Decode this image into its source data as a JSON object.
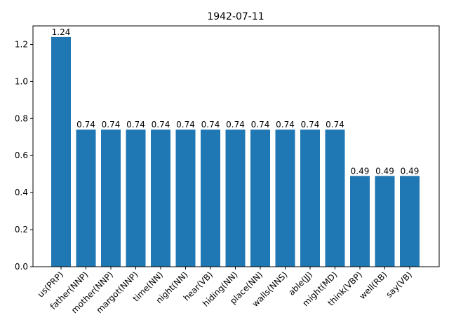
{
  "chart_data": {
    "type": "bar",
    "title": "1942-07-11",
    "xlabel": "",
    "ylabel": "",
    "categories": [
      "us(PRP)",
      "father(NNP)",
      "mother(NNP)",
      "margot(NNP)",
      "time(NN)",
      "night(NN)",
      "hear(VB)",
      "hiding(NN)",
      "place(NN)",
      "walls(NNS)",
      "able(JJ)",
      "might(MD)",
      "think(VBP)",
      "well(RB)",
      "say(VB)"
    ],
    "values": [
      1.24,
      0.74,
      0.74,
      0.74,
      0.74,
      0.74,
      0.74,
      0.74,
      0.74,
      0.74,
      0.74,
      0.74,
      0.49,
      0.49,
      0.49
    ],
    "value_labels": [
      "1.24",
      "0.74",
      "0.74",
      "0.74",
      "0.74",
      "0.74",
      "0.74",
      "0.74",
      "0.74",
      "0.74",
      "0.74",
      "0.74",
      "0.49",
      "0.49",
      "0.49"
    ],
    "ylim": [
      0,
      1.3
    ],
    "yticks": [
      0.0,
      0.2,
      0.4,
      0.6,
      0.8,
      1.0,
      1.2
    ],
    "ytick_labels": [
      "0.0",
      "0.2",
      "0.4",
      "0.6",
      "0.8",
      "1.0",
      "1.2"
    ],
    "bar_color": "#1f77b4",
    "grid": false,
    "legend": "none"
  }
}
